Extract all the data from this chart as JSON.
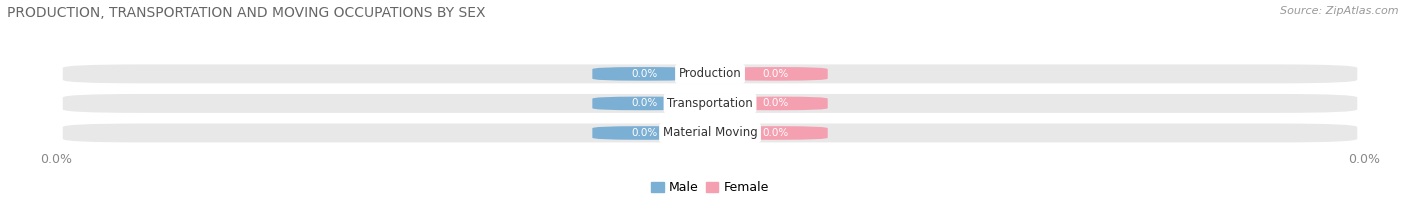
{
  "title": "PRODUCTION, TRANSPORTATION AND MOVING OCCUPATIONS BY SEX",
  "source": "Source: ZipAtlas.com",
  "categories": [
    "Production",
    "Transportation",
    "Material Moving"
  ],
  "male_values": [
    0.0,
    0.0,
    0.0
  ],
  "female_values": [
    0.0,
    0.0,
    0.0
  ],
  "male_color": "#7bafd4",
  "female_color": "#f4a0b0",
  "bar_bg_color": "#e8e8e8",
  "male_label": "Male",
  "female_label": "Female",
  "xlim": [
    -1,
    1
  ],
  "title_fontsize": 10,
  "source_fontsize": 8,
  "label_fontsize": 8.5,
  "value_fontsize": 7.5,
  "tick_fontsize": 9,
  "figsize": [
    14.06,
    1.97
  ],
  "dpi": 100
}
